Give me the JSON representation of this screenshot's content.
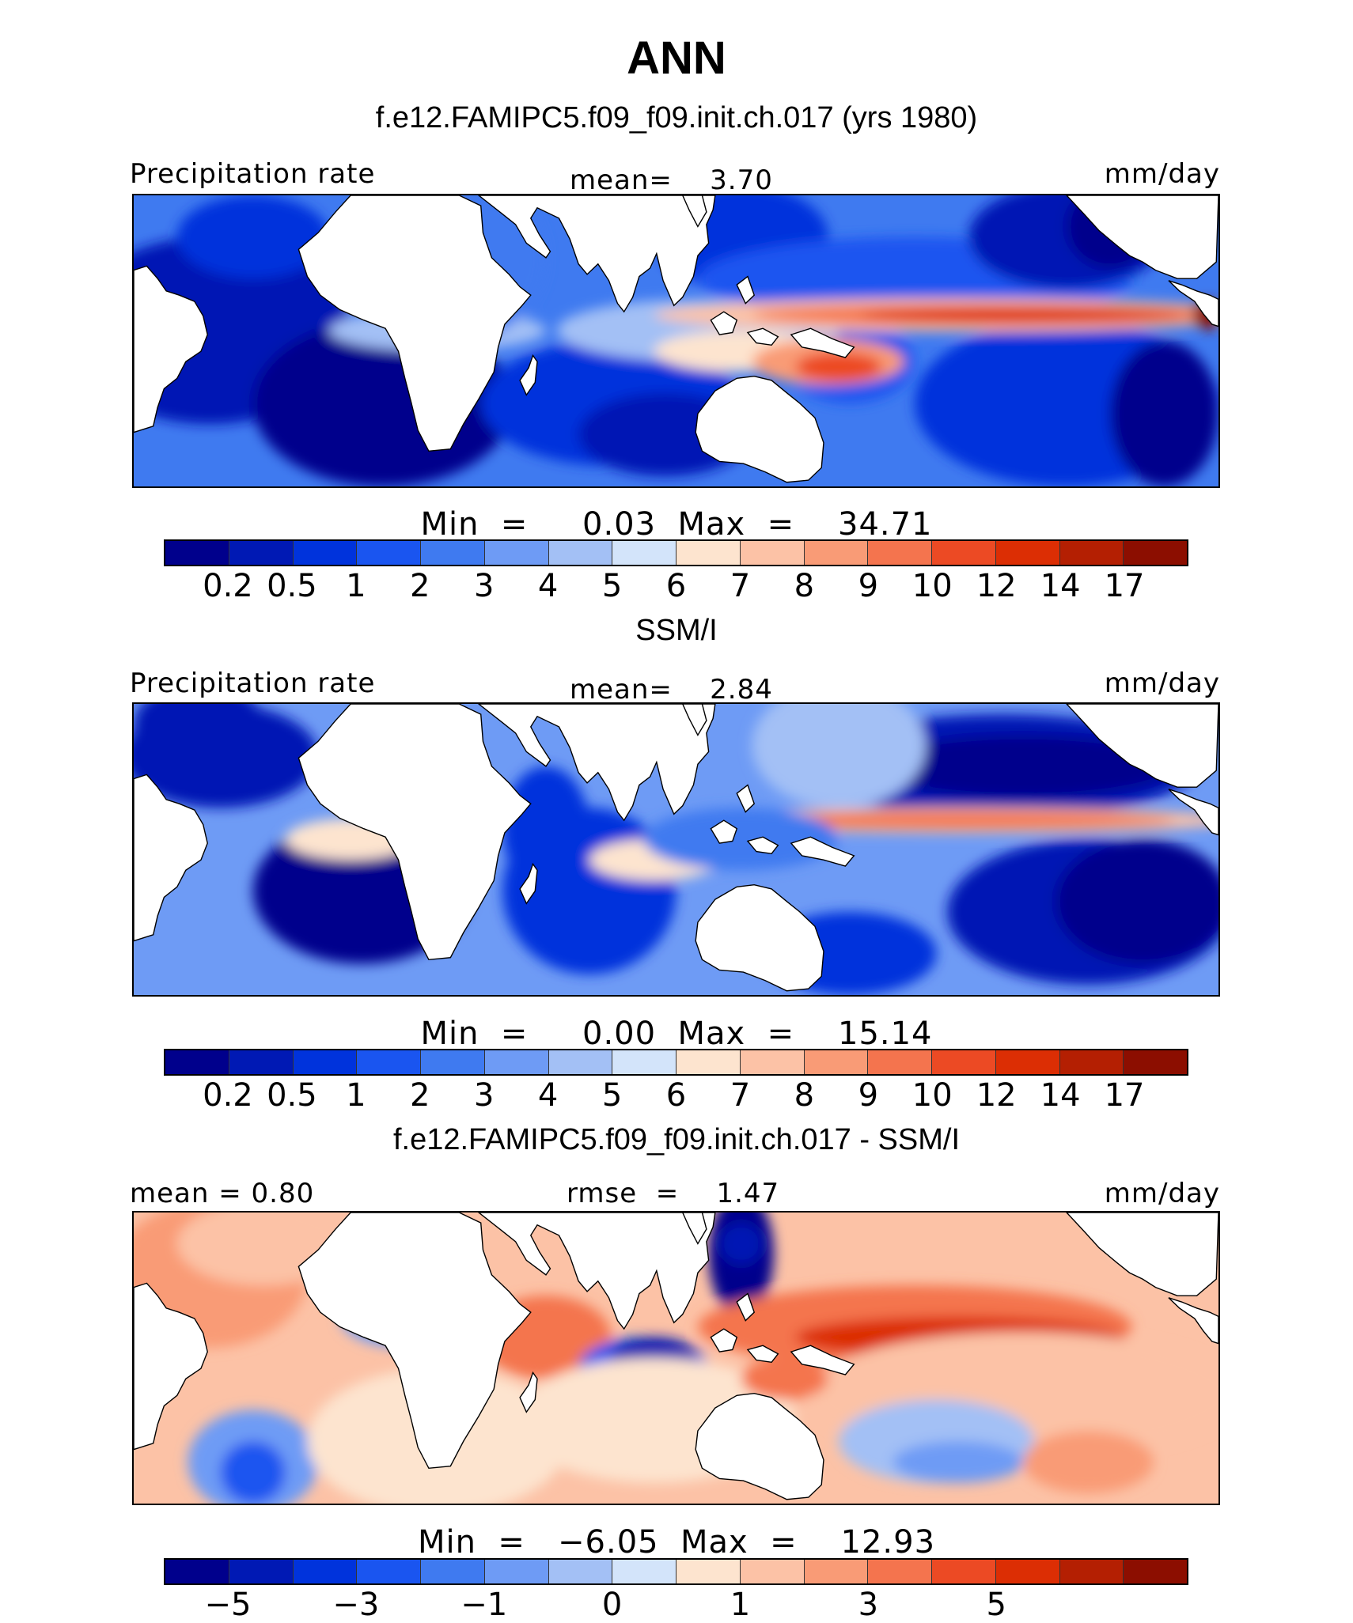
{
  "title": "ANN",
  "palette": [
    "#00008c",
    "#0019b4",
    "#0033dc",
    "#1a55f0",
    "#3f7af0",
    "#6e9bf5",
    "#a3c0f5",
    "#d3e4fa",
    "#fde4cf",
    "#fcc2a6",
    "#f99b76",
    "#f4744e",
    "#ec4a24",
    "#dc2e04",
    "#b41f02",
    "#8c0e00"
  ],
  "panels": [
    {
      "subtitle": "f.e12.FAMIPC5.f09_f09.init.ch.017 (yrs 1980)",
      "left_label": "Precipitation rate",
      "center_label": "mean=    3.70",
      "units": "mm/day",
      "minmax": "Min  =     0.03  Max  =    34.71",
      "ticks": [
        "0.2",
        "0.5",
        "1",
        "2",
        "3",
        "4",
        "5",
        "6",
        "7",
        "8",
        "9",
        "10",
        "12",
        "14",
        "17"
      ],
      "chart_data": {
        "type": "heatmap",
        "variable": "Precipitation rate",
        "units": "mm/day",
        "mean": 3.7,
        "min": 0.03,
        "max": 34.71,
        "contour_levels": [
          0.2,
          0.5,
          1,
          2,
          3,
          4,
          5,
          6,
          7,
          8,
          9,
          10,
          12,
          14,
          17
        ]
      }
    },
    {
      "subtitle": "SSM/I",
      "left_label": "Precipitation rate",
      "center_label": "mean=    2.84",
      "units": "mm/day",
      "minmax": "Min  =     0.00  Max  =    15.14",
      "ticks": [
        "0.2",
        "0.5",
        "1",
        "2",
        "3",
        "4",
        "5",
        "6",
        "7",
        "8",
        "9",
        "10",
        "12",
        "14",
        "17"
      ],
      "chart_data": {
        "type": "heatmap",
        "variable": "Precipitation rate",
        "units": "mm/day",
        "mean": 2.84,
        "min": 0.0,
        "max": 15.14,
        "contour_levels": [
          0.2,
          0.5,
          1,
          2,
          3,
          4,
          5,
          6,
          7,
          8,
          9,
          10,
          12,
          14,
          17
        ]
      }
    },
    {
      "subtitle": "f.e12.FAMIPC5.f09_f09.init.ch.017 - SSM/I",
      "left_label": "mean  =    0.80",
      "center_label": "rmse  =    1.47",
      "units": "mm/day",
      "minmax": "Min  =   −6.05  Max  =    12.93",
      "ticks": [
        "−5",
        "−3",
        "−1",
        "0",
        "1",
        "3",
        "5"
      ],
      "tick_boundaries": [
        1,
        3,
        5,
        7,
        9,
        11,
        13
      ],
      "chart_data": {
        "type": "heatmap",
        "variable": "difference",
        "units": "mm/day",
        "mean": 0.8,
        "rmse": 1.47,
        "min": -6.05,
        "max": 12.93
      }
    }
  ]
}
